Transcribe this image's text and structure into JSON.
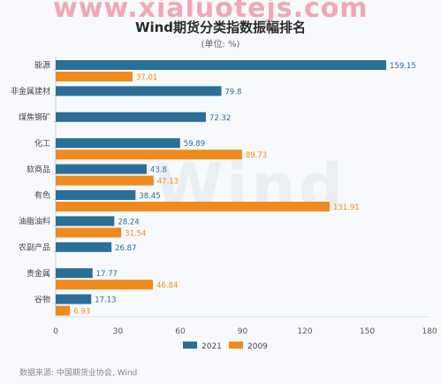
{
  "watermarks": {
    "top": "www.xialuotejs.com",
    "middle": "Wind"
  },
  "chart_data": {
    "type": "bar",
    "orientation": "horizontal",
    "title": "Wind期货分类指数振幅排名",
    "subtitle": "(单位: %)",
    "categories": [
      "能源",
      "非金属建材",
      "煤焦钢矿",
      "化工",
      "软商品",
      "有色",
      "油脂油料",
      "农副产品",
      "贵金属",
      "谷物"
    ],
    "series": [
      {
        "name": "2021",
        "color": "#2b6f98",
        "values": [
          159.15,
          79.8,
          72.32,
          59.89,
          43.8,
          38.45,
          28.24,
          26.87,
          17.77,
          17.13
        ]
      },
      {
        "name": "2009",
        "color": "#f08a1d",
        "values": [
          37.01,
          null,
          null,
          89.73,
          47.13,
          131.91,
          31.54,
          null,
          46.84,
          6.93
        ]
      }
    ],
    "xlim": [
      0,
      180
    ],
    "xticks": [
      0,
      30,
      60,
      90,
      120,
      150,
      180
    ],
    "grid": false,
    "legend_position": "bottom",
    "source": "数据来源: 中国期货业协会, Wind"
  }
}
